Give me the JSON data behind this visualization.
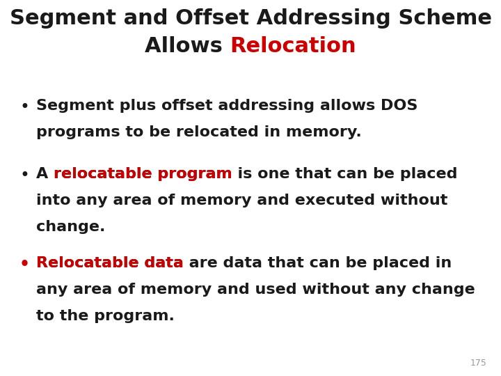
{
  "title_line1": "Segment and Offset Addressing Scheme",
  "title_line2_black": "Allows ",
  "title_line2_red": "Relocation",
  "title_fontsize": 22,
  "bg_color": "#ffffff",
  "text_color": "#1a1a1a",
  "red_color": "#cc0000",
  "bullet_font_size": 16,
  "bullet1_line1": "Segment plus offset addressing allows DOS",
  "bullet1_line2": "programs to be relocated in memory.",
  "bullet2_prefix": "A ",
  "bullet2_red": "relocatable program",
  "bullet2_suffix": " is one that can be placed",
  "bullet2_line2": "into any area of memory and executed without",
  "bullet2_line3": "change.",
  "bullet3_red": "Relocatable data",
  "bullet3_suffix": " are data that can be placed in",
  "bullet3_line2": "any area of memory and used without any change",
  "bullet3_line3": "to the program.",
  "page_number": "175",
  "page_num_color": "#999999",
  "page_num_fontsize": 9
}
